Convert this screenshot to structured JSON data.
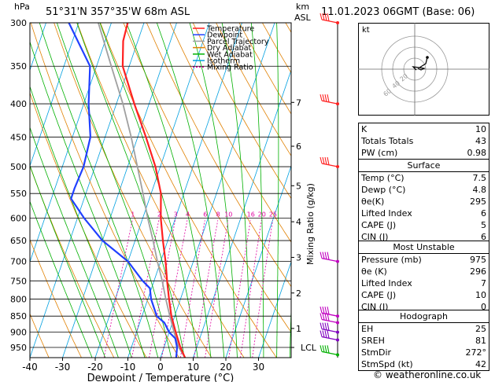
{
  "header": {
    "unit": "hPa",
    "location": "51°31'N  357°35'W  68m  ASL",
    "km_label": "km",
    "asl_label": "ASL",
    "datetime": "11.01.2023  06GMT  (Base: 06)"
  },
  "colors": {
    "temperature": "#ff2020",
    "dewpoint": "#2040ff",
    "parcel": "#a0a0a0",
    "dry_adiabat": "#e08000",
    "wet_adiabat": "#00b000",
    "isotherm": "#00a0e0",
    "mixing_ratio": "#e000a0"
  },
  "legend": [
    {
      "label": "Temperature",
      "color": "#ff2020",
      "dash": ""
    },
    {
      "label": "Dewpoint",
      "color": "#2040ff",
      "dash": ""
    },
    {
      "label": "Parcel Trajectory",
      "color": "#a0a0a0",
      "dash": ""
    },
    {
      "label": "Dry Adiabat",
      "color": "#e08000",
      "dash": ""
    },
    {
      "label": "Wet Adiabat",
      "color": "#00b000",
      "dash": ""
    },
    {
      "label": "Isotherm",
      "color": "#00a0e0",
      "dash": ""
    },
    {
      "label": "Mixing Ratio",
      "color": "#e000a0",
      "dash": "2,2"
    }
  ],
  "chart_data": {
    "type": "line",
    "xlabel": "Dewpoint / Temperature (°C)",
    "ylabel_right": "Mixing Ratio (g/kg)",
    "pressure_levels": [
      300,
      350,
      400,
      450,
      500,
      550,
      600,
      650,
      700,
      750,
      800,
      850,
      900,
      950
    ],
    "x_ticks": [
      -40,
      -30,
      -20,
      -10,
      0,
      10,
      20,
      30
    ],
    "xlim": [
      -40,
      40
    ],
    "ylim": [
      300,
      985
    ],
    "km_ticks": [
      {
        "km": "1",
        "p": 888
      },
      {
        "km": "2",
        "p": 783
      },
      {
        "km": "3",
        "p": 690
      },
      {
        "km": "4",
        "p": 608
      },
      {
        "km": "5",
        "p": 535
      },
      {
        "km": "6",
        "p": 465
      },
      {
        "km": "7",
        "p": 398
      }
    ],
    "lcl": {
      "label": "LCL",
      "p": 950
    },
    "mixing_ratio_labels": [
      "1",
      "2",
      "3",
      "4",
      "6",
      "8",
      "10",
      "16",
      "20",
      "25"
    ],
    "mixing_ratio_values": [
      1,
      2,
      3,
      4,
      6,
      8,
      10,
      16,
      20,
      25
    ],
    "series": [
      {
        "name": "Temperature",
        "points": [
          [
            985,
            7.5
          ],
          [
            950,
            5.0
          ],
          [
            900,
            2.0
          ],
          [
            850,
            -1.0
          ],
          [
            800,
            -3.5
          ],
          [
            750,
            -6.0
          ],
          [
            700,
            -8.5
          ],
          [
            650,
            -11.5
          ],
          [
            600,
            -14.5
          ],
          [
            550,
            -17.0
          ],
          [
            500,
            -21.5
          ],
          [
            450,
            -27.5
          ],
          [
            400,
            -34.5
          ],
          [
            350,
            -42.0
          ],
          [
            320,
            -44.5
          ],
          [
            300,
            -45.0
          ]
        ]
      },
      {
        "name": "Dewpoint",
        "points": [
          [
            985,
            4.8
          ],
          [
            950,
            4.0
          ],
          [
            920,
            2.5
          ],
          [
            900,
            0.0
          ],
          [
            870,
            -2.5
          ],
          [
            850,
            -5.5
          ],
          [
            800,
            -9.0
          ],
          [
            770,
            -10.5
          ],
          [
            750,
            -13.5
          ],
          [
            700,
            -20.0
          ],
          [
            650,
            -30.0
          ],
          [
            600,
            -38.0
          ],
          [
            560,
            -44.0
          ],
          [
            540,
            -44.0
          ],
          [
            500,
            -43.5
          ],
          [
            450,
            -44.5
          ],
          [
            400,
            -48.5
          ],
          [
            350,
            -52.0
          ],
          [
            300,
            -63.0
          ]
        ]
      },
      {
        "name": "Parcel Trajectory",
        "points": [
          [
            985,
            7.5
          ],
          [
            950,
            4.5
          ],
          [
            900,
            1.5
          ],
          [
            850,
            -1.5
          ],
          [
            800,
            -4.5
          ],
          [
            750,
            -7.5
          ],
          [
            700,
            -11.0
          ],
          [
            650,
            -14.5
          ],
          [
            600,
            -18.5
          ],
          [
            550,
            -22.5
          ],
          [
            500,
            -27.0
          ],
          [
            450,
            -32.0
          ],
          [
            400,
            -38.0
          ],
          [
            350,
            -45.5
          ],
          [
            300,
            -54.0
          ]
        ]
      }
    ]
  },
  "wind_barbs": {
    "pressures": [
      300,
      400,
      500,
      700,
      850,
      870,
      900,
      925,
      975
    ],
    "colors": [
      "#ff2020",
      "#ff2020",
      "#ff2020",
      "#c000c0",
      "#c000c0",
      "#c000c0",
      "#8000c0",
      "#8000c0",
      "#00b000"
    ]
  },
  "hodograph": {
    "label": "kt",
    "ring_labels": [
      "20",
      "40",
      "60"
    ]
  },
  "indices": [
    {
      "label": "K",
      "value": "10"
    },
    {
      "label": "Totals Totals",
      "value": "43"
    },
    {
      "label": "PW (cm)",
      "value": "0.98"
    }
  ],
  "surface": {
    "title": "Surface",
    "rows": [
      {
        "label": "Temp (°C)",
        "value": "7.5"
      },
      {
        "label": "Dewp (°C)",
        "value": "4.8"
      },
      {
        "label": "θe(K)",
        "value": "295"
      },
      {
        "label": "Lifted Index",
        "value": "6"
      },
      {
        "label": "CAPE (J)",
        "value": "5"
      },
      {
        "label": "CIN (J)",
        "value": "6"
      }
    ]
  },
  "most_unstable": {
    "title": "Most Unstable",
    "rows": [
      {
        "label": "Pressure (mb)",
        "value": "975"
      },
      {
        "label": "θe (K)",
        "value": "296"
      },
      {
        "label": "Lifted Index",
        "value": "7"
      },
      {
        "label": "CAPE (J)",
        "value": "10"
      },
      {
        "label": "CIN (J)",
        "value": "0"
      }
    ]
  },
  "hodograph_table": {
    "title": "Hodograph",
    "rows": [
      {
        "label": "EH",
        "value": "25"
      },
      {
        "label": "SREH",
        "value": "81"
      },
      {
        "label": "StmDir",
        "value": "272°"
      },
      {
        "label": "StmSpd (kt)",
        "value": "42"
      }
    ]
  },
  "copyright": "© weatheronline.co.uk"
}
